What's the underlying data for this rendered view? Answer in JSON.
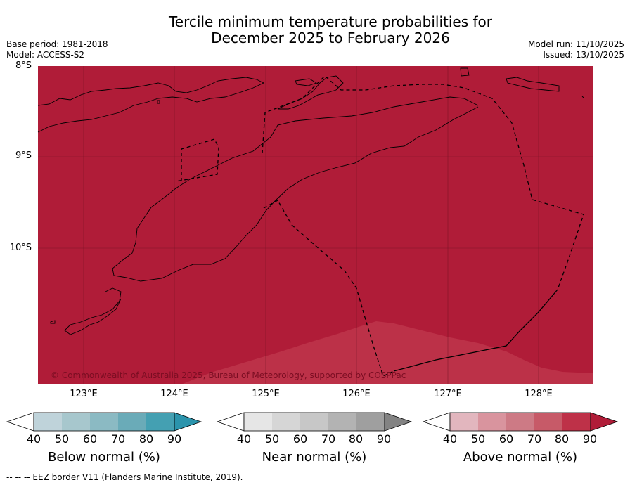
{
  "header": {
    "title_line1": "Tercile minimum temperature probabilities for",
    "title_line2": "December 2025 to February 2026",
    "base_period": "Base period: 1981-2018",
    "model": "Model: ACCESS-S2",
    "model_run": "Model run: 11/10/2025",
    "issued": "Issued: 13/10/2025"
  },
  "map": {
    "lat_labels": [
      "8°S",
      "9°S",
      "10°S"
    ],
    "lon_labels": [
      "123°E",
      "124°E",
      "125°E",
      "126°E",
      "127°E",
      "128°E"
    ],
    "copyright": "© Commonwealth of Australia 2025, Bureau of Meteorology, supported by COSPPac",
    "dominant_category": "Above normal",
    "dominant_band": "90",
    "secondary_band": "80",
    "colors": {
      "above_90": "#b01c38",
      "above_80": "#bc3148",
      "land_outline": "#000000"
    }
  },
  "legend": {
    "below": {
      "label": "Below normal (%)",
      "ticks": [
        "40",
        "50",
        "60",
        "70",
        "80",
        "90"
      ],
      "colors": [
        "#ffffff",
        "#bfd3da",
        "#a7c7cd",
        "#8bbac3",
        "#6aabb8",
        "#44a0b2",
        "#2b94ac"
      ]
    },
    "near": {
      "label": "Near normal (%)",
      "ticks": [
        "40",
        "50",
        "60",
        "70",
        "80",
        "90"
      ],
      "colors": [
        "#ffffff",
        "#e6e6e6",
        "#d6d6d6",
        "#c7c7c7",
        "#b3b3b3",
        "#9f9f9f",
        "#838383"
      ]
    },
    "above": {
      "label": "Above normal (%)",
      "ticks": [
        "40",
        "50",
        "60",
        "70",
        "80",
        "90"
      ],
      "colors": [
        "#ffffff",
        "#e2b6be",
        "#d9949e",
        "#cd7a85",
        "#c75a68",
        "#be3148",
        "#b01c38"
      ]
    }
  },
  "footnote": "--  --  -- EEZ border V11 (Flanders Marine Institute, 2019)."
}
